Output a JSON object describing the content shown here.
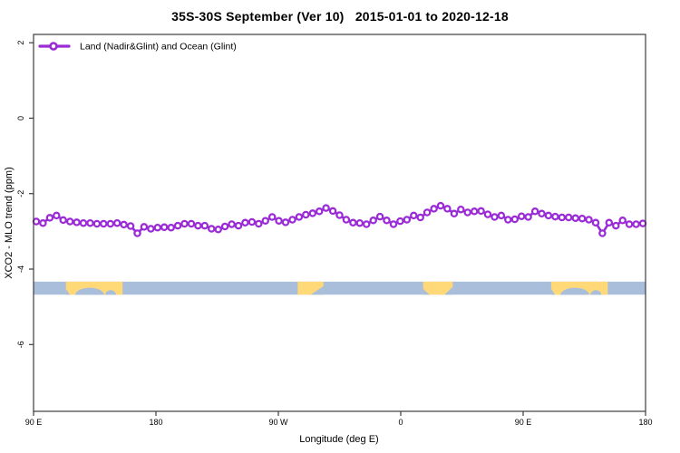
{
  "title": "35S-30S September (Ver 10)   2015-01-01 to 2020-12-18",
  "legend": {
    "label": "Land (Nadir&Glint) and Ocean (Glint)",
    "marker": "open-circle-on-line"
  },
  "axes": {
    "x_label": "Longitude (deg E)",
    "y_label": "XCO2 - MLO trend (ppm)",
    "x_ticks": [
      {
        "value": 90,
        "label": "90 E"
      },
      {
        "value": 180,
        "label": "180"
      },
      {
        "value": 270,
        "label": "90 W"
      },
      {
        "value": 360,
        "label": "0"
      },
      {
        "value": 450,
        "label": "90 E"
      },
      {
        "value": 540,
        "label": "180"
      }
    ],
    "y_ticks": [
      {
        "value": 2,
        "label": "2"
      },
      {
        "value": 0,
        "label": "0"
      },
      {
        "value": -2,
        "label": "-2"
      },
      {
        "value": -4,
        "label": "-4"
      },
      {
        "value": -6,
        "label": "-6"
      }
    ]
  },
  "colors": {
    "line": "#9a2bd6",
    "marker_fill": "#ffffff",
    "ocean": "#a9bedb",
    "land": "#ffd978",
    "frame": "#3c3c3c"
  },
  "chart_data": {
    "type": "line",
    "title": "35S-30S September (Ver 10)   2015-01-01 to 2020-12-18",
    "xlabel": "Longitude (deg E)",
    "ylabel": "XCO2 - MLO trend (ppm)",
    "xlim": [
      90,
      540
    ],
    "ylim": [
      -7.77,
      2.22
    ],
    "grid": false,
    "legend_position": "top-left-inside",
    "x": [
      90,
      95,
      100,
      105,
      110,
      115,
      120,
      125,
      130,
      135,
      140,
      145,
      150,
      155,
      160,
      165,
      170,
      175,
      180,
      185,
      190,
      195,
      200,
      205,
      210,
      215,
      220,
      225,
      230,
      235,
      240,
      245,
      250,
      255,
      260,
      265,
      270,
      275,
      280,
      285,
      290,
      295,
      300,
      305,
      310,
      315,
      320,
      325,
      330,
      335,
      340,
      345,
      350,
      355,
      360,
      365,
      370,
      375,
      380,
      385,
      390,
      395,
      400,
      405,
      410,
      415,
      420,
      425,
      430,
      435,
      440,
      445,
      450,
      455,
      460,
      465,
      470,
      475,
      480,
      485,
      490,
      495,
      500,
      505,
      510,
      515,
      520,
      525,
      530,
      535,
      540
    ],
    "series": [
      {
        "name": "Land (Nadir&Glint) and Ocean (Glint)",
        "values": [
          -2.74,
          -2.78,
          -2.64,
          -2.58,
          -2.7,
          -2.74,
          -2.76,
          -2.78,
          -2.78,
          -2.8,
          -2.8,
          -2.8,
          -2.78,
          -2.82,
          -2.86,
          -3.05,
          -2.88,
          -2.93,
          -2.9,
          -2.89,
          -2.9,
          -2.85,
          -2.8,
          -2.8,
          -2.85,
          -2.85,
          -2.93,
          -2.95,
          -2.87,
          -2.81,
          -2.85,
          -2.77,
          -2.75,
          -2.8,
          -2.72,
          -2.62,
          -2.72,
          -2.76,
          -2.69,
          -2.62,
          -2.56,
          -2.52,
          -2.47,
          -2.38,
          -2.46,
          -2.57,
          -2.69,
          -2.77,
          -2.78,
          -2.81,
          -2.71,
          -2.61,
          -2.71,
          -2.81,
          -2.73,
          -2.69,
          -2.58,
          -2.63,
          -2.5,
          -2.4,
          -2.32,
          -2.4,
          -2.53,
          -2.42,
          -2.5,
          -2.47,
          -2.46,
          -2.55,
          -2.62,
          -2.58,
          -2.69,
          -2.68,
          -2.6,
          -2.62,
          -2.47,
          -2.53,
          -2.58,
          -2.61,
          -2.63,
          -2.63,
          -2.65,
          -2.66,
          -2.69,
          -2.77,
          -3.05,
          -2.77,
          -2.85,
          -2.71,
          -2.81,
          -2.81,
          -2.79
        ]
      }
    ],
    "band": {
      "y_top": -4.33,
      "y_bottom": -4.68,
      "ocean_color": "#a9bedb",
      "land_color": "#ffd978",
      "land_segments": [
        {
          "name": "australia",
          "from": 112,
          "to": 154
        },
        {
          "name": "south-america",
          "from": 284,
          "to": 303
        },
        {
          "name": "africa",
          "from": 377,
          "to": 399
        },
        {
          "name": "australia-repeat",
          "from": 472,
          "to": 514
        }
      ]
    }
  }
}
